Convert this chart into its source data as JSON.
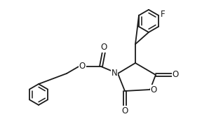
{
  "bg_color": "#ffffff",
  "line_color": "#1a1a1a",
  "line_width": 1.3,
  "font_size": 8.5,
  "fig_width": 2.88,
  "fig_height": 1.9,
  "dpi": 100,
  "xlim": [
    0,
    10
  ],
  "ylim": [
    0,
    6.6
  ]
}
